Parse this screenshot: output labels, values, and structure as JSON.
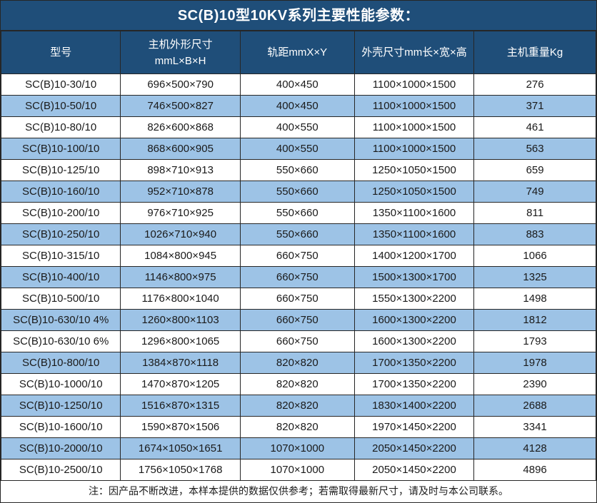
{
  "colors": {
    "header_bg": "#1F4E79",
    "header_text": "#FFFFFF",
    "row_bg": "#FFFFFF",
    "row_alt_bg": "#9DC3E6",
    "body_text": "#1A1A1A",
    "border": "#262626"
  },
  "title": "SC(B)10型10KV系列主要性能参数：",
  "table": {
    "columns": [
      "型号",
      "主机外形尺寸\nmmL×B×H",
      "轨距mmX×Y",
      "外壳尺寸mm长×宽×高",
      "主机重量Kg"
    ],
    "rows": [
      [
        "SC(B)10-30/10",
        "696×500×790",
        "400×450",
        "1100×1000×1500",
        "276"
      ],
      [
        "SC(B)10-50/10",
        "746×500×827",
        "400×450",
        "1100×1000×1500",
        "371"
      ],
      [
        "SC(B)10-80/10",
        "826×600×868",
        "400×550",
        "1100×1000×1500",
        "461"
      ],
      [
        "SC(B)10-100/10",
        "868×600×905",
        "400×550",
        "1100×1000×1500",
        "563"
      ],
      [
        "SC(B)10-125/10",
        "898×710×913",
        "550×660",
        "1250×1050×1500",
        "659"
      ],
      [
        "SC(B)10-160/10",
        "952×710×878",
        "550×660",
        "1250×1050×1500",
        "749"
      ],
      [
        "SC(B)10-200/10",
        "976×710×925",
        "550×660",
        "1350×1100×1600",
        "811"
      ],
      [
        "SC(B)10-250/10",
        "1026×710×940",
        "550×660",
        "1350×1100×1600",
        "883"
      ],
      [
        "SC(B)10-315/10",
        "1084×800×945",
        "660×750",
        "1400×1200×1700",
        "1066"
      ],
      [
        "SC(B)10-400/10",
        "1146×800×975",
        "660×750",
        "1500×1300×1700",
        "1325"
      ],
      [
        "SC(B)10-500/10",
        "1176×800×1040",
        "660×750",
        "1550×1300×2200",
        "1498"
      ],
      [
        "SC(B)10-630/10 4%",
        "1260×800×1103",
        "660×750",
        "1600×1300×2200",
        "1812"
      ],
      [
        "SC(B)10-630/10 6%",
        "1296×800×1065",
        "660×750",
        "1600×1300×2200",
        "1793"
      ],
      [
        "SC(B)10-800/10",
        "1384×870×1118",
        "820×820",
        "1700×1350×2200",
        "1978"
      ],
      [
        "SC(B)10-1000/10",
        "1470×870×1205",
        "820×820",
        "1700×1350×2200",
        "2390"
      ],
      [
        "SC(B)10-1250/10",
        "1516×870×1315",
        "820×820",
        "1830×1400×2200",
        "2688"
      ],
      [
        "SC(B)10-1600/10",
        "1590×870×1506",
        "820×820",
        "1970×1450×2200",
        "3341"
      ],
      [
        "SC(B)10-2000/10",
        "1674×1050×1651",
        "1070×1000",
        "2050×1450×2200",
        "4128"
      ],
      [
        "SC(B)10-2500/10",
        "1756×1050×1768",
        "1070×1000",
        "2050×1450×2200",
        "4896"
      ]
    ]
  },
  "footnote": "注：因产品不断改进，本样本提供的数据仅供参考；若需取得最新尺寸，请及时与本公司联系。"
}
